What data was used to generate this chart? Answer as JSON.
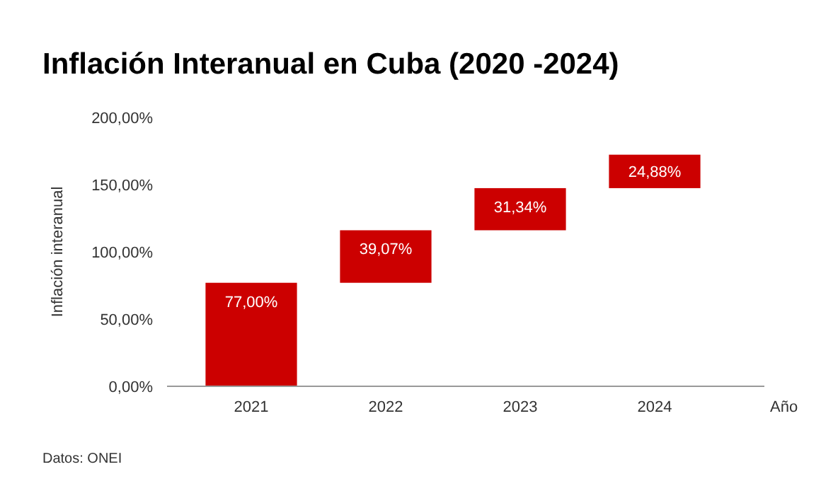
{
  "chart_data": {
    "type": "bar",
    "title": "Inflación Interanual en Cuba (2020 -2024)",
    "xlabel": "Año",
    "ylabel": "Inflación interanual",
    "categories": [
      "2021",
      "2022",
      "2023",
      "2024"
    ],
    "values": [
      77.0,
      39.07,
      31.34,
      24.88
    ],
    "base": [
      0,
      77.0,
      116.07,
      147.41
    ],
    "value_labels": [
      "77,00%",
      "39,07%",
      "31,34%",
      "24,88%"
    ],
    "color": "#cc0000",
    "ylim": [
      0,
      200
    ],
    "yticks": [
      {
        "value": 0,
        "label": "0,00%"
      },
      {
        "value": 50,
        "label": "50,00%"
      },
      {
        "value": 100,
        "label": "100,00%"
      },
      {
        "value": 150,
        "label": "150,00%"
      },
      {
        "value": 200,
        "label": "200,00%"
      }
    ],
    "annotations": [
      "Datos: ONEI"
    ]
  }
}
